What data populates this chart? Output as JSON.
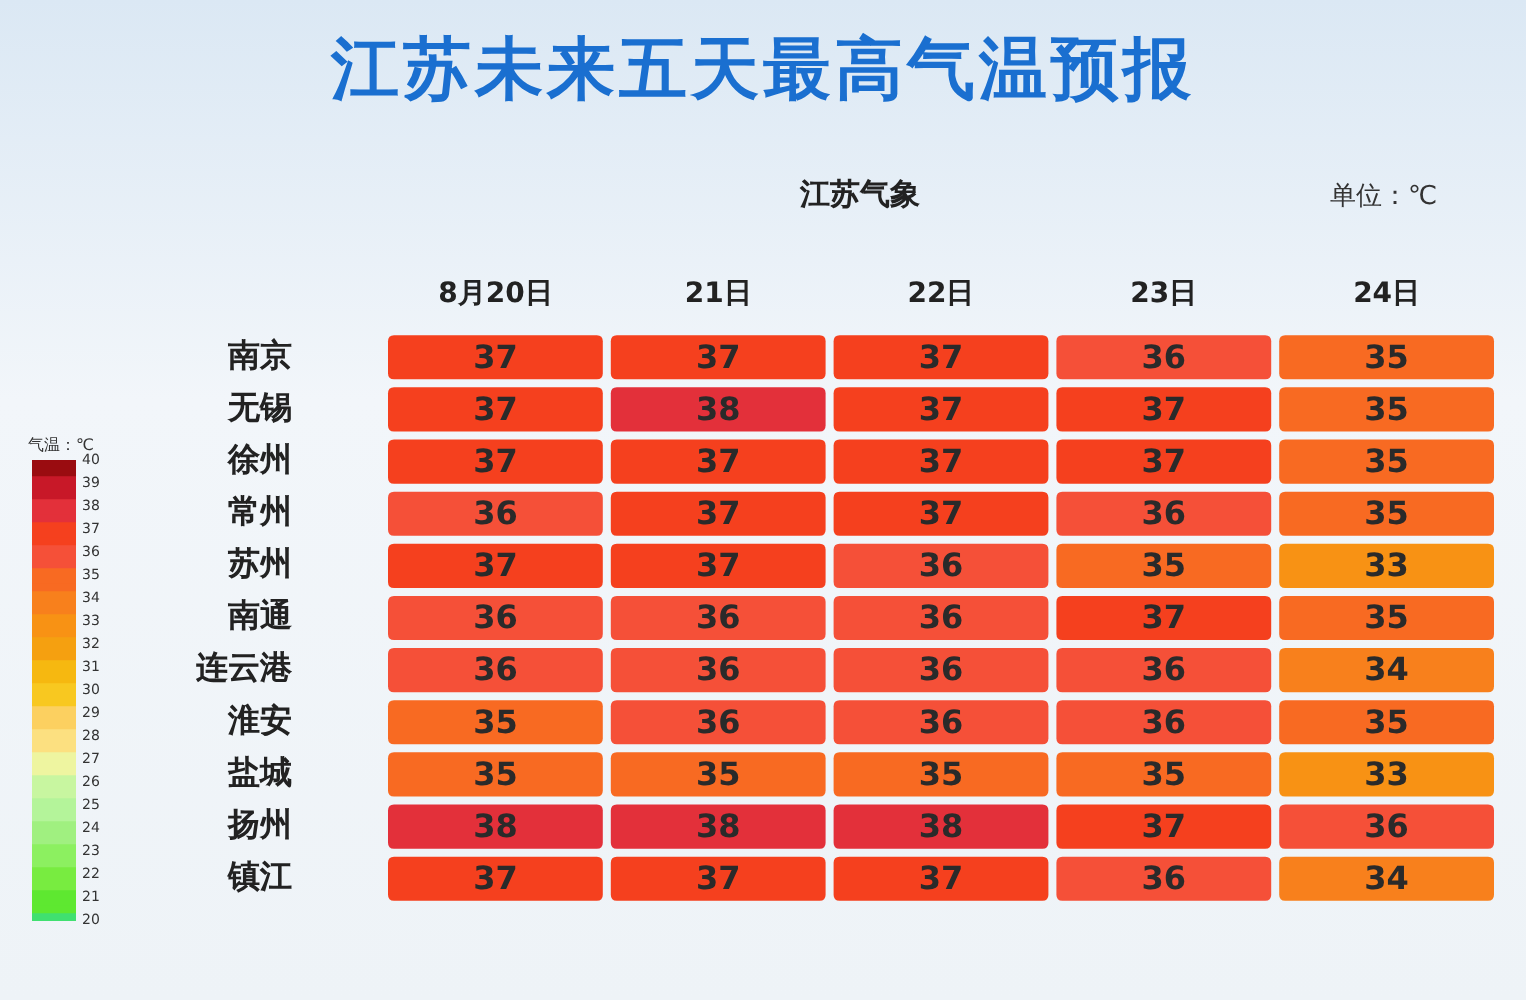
{
  "chart_data": {
    "type": "heatmap",
    "title": "江苏未来五天最高气温预报",
    "subtitle": "江苏气象",
    "annotations": [
      "单位：℃"
    ],
    "clabel": "气温：℃",
    "categories": [
      "8月20日",
      "21日",
      "22日",
      "23日",
      "24日"
    ],
    "y_categories": [
      "南京",
      "无锡",
      "徐州",
      "常州",
      "苏州",
      "南通",
      "连云港",
      "淮安",
      "盐城",
      "扬州",
      "镇江"
    ],
    "cells": [
      [
        37,
        37,
        37,
        36,
        35
      ],
      [
        37,
        38,
        37,
        37,
        35
      ],
      [
        37,
        37,
        37,
        37,
        35
      ],
      [
        36,
        37,
        37,
        36,
        35
      ],
      [
        37,
        37,
        36,
        35,
        33
      ],
      [
        36,
        36,
        36,
        37,
        35
      ],
      [
        36,
        36,
        36,
        36,
        34
      ],
      [
        35,
        36,
        36,
        36,
        35
      ],
      [
        35,
        35,
        35,
        35,
        33
      ],
      [
        38,
        38,
        38,
        37,
        36
      ],
      [
        37,
        37,
        37,
        36,
        34
      ]
    ],
    "data_labels": true,
    "clim": [
      20,
      40
    ],
    "cticks": [
      20,
      21,
      22,
      23,
      24,
      25,
      26,
      27,
      28,
      29,
      30,
      31,
      32,
      33,
      34,
      35,
      36,
      37,
      38,
      39,
      40
    ]
  }
}
